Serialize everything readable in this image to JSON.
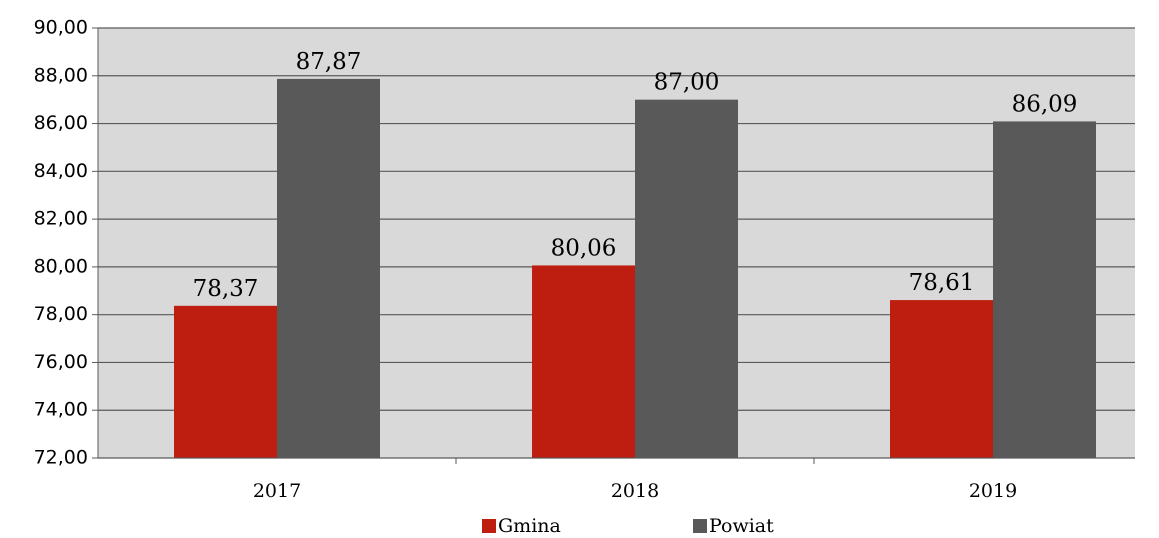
{
  "chart_data": {
    "type": "bar",
    "categories": [
      "2017",
      "2018",
      "2019"
    ],
    "series": [
      {
        "name": "Gmina",
        "color": "#be1e0f",
        "values": [
          78.37,
          80.06,
          78.61
        ],
        "value_labels": [
          "78,37",
          "80,06",
          "78,61"
        ]
      },
      {
        "name": "Powiat",
        "color": "#595959",
        "values": [
          87.87,
          87.0,
          86.09
        ],
        "value_labels": [
          "87,87",
          "87,00",
          "86,09"
        ]
      }
    ],
    "ylim": [
      72,
      90
    ],
    "yticks": [
      {
        "value": 72,
        "label": "72,00"
      },
      {
        "value": 74,
        "label": "74,00"
      },
      {
        "value": 76,
        "label": "76,00"
      },
      {
        "value": 78,
        "label": "78,00"
      },
      {
        "value": 80,
        "label": "80,00"
      },
      {
        "value": 82,
        "label": "82,00"
      },
      {
        "value": 84,
        "label": "84,00"
      },
      {
        "value": 86,
        "label": "86,00"
      },
      {
        "value": 88,
        "label": "88,00"
      },
      {
        "value": 90,
        "label": "90,00"
      }
    ],
    "grid": true
  }
}
